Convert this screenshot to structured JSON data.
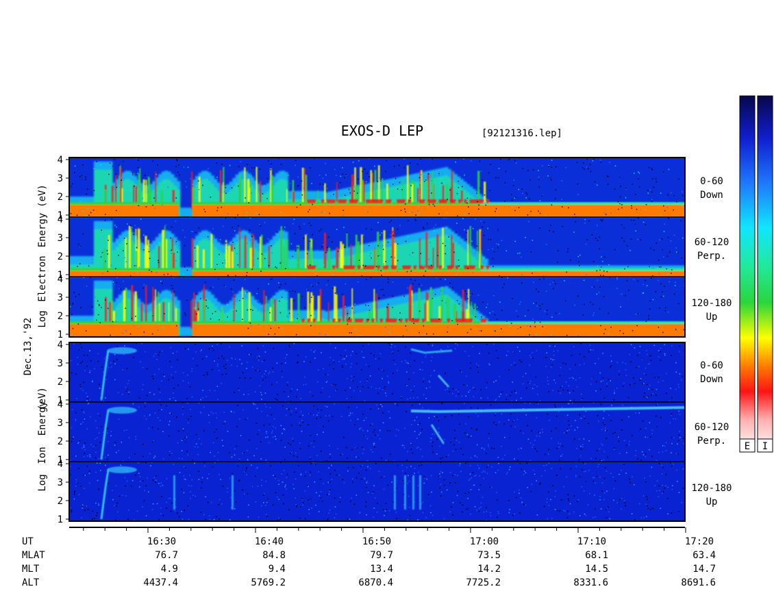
{
  "title": "EXOS-D LEP",
  "file": "[92121316.lep]",
  "date": "Dec.13,'92",
  "colorbar_labels": [
    "E",
    "I"
  ],
  "electron_label": [
    "Electron",
    "Energy",
    "(eV)"
  ],
  "ion_label": [
    "Ion",
    "Energy",
    "(eV)"
  ],
  "log_label": "Log",
  "ytick_labels": [
    "1",
    "2",
    "3",
    "4"
  ],
  "panels": [
    {
      "species": "electron",
      "range": "0-60",
      "direction": "Down"
    },
    {
      "species": "electron",
      "range": "60-120",
      "direction": "Perp."
    },
    {
      "species": "electron",
      "range": "120-180",
      "direction": "Up"
    },
    {
      "species": "ion",
      "range": "0-60",
      "direction": "Down"
    },
    {
      "species": "ion",
      "range": "60-120",
      "direction": "Perp."
    },
    {
      "species": "ion",
      "range": "120-180",
      "direction": "Up"
    }
  ],
  "footer": {
    "row_labels": [
      "UT",
      "MLAT",
      "MLT",
      "ALT"
    ],
    "columns": [
      {
        "ut": "16:30",
        "mlat": "76.7",
        "mlt": "4.9",
        "alt": "4437.4"
      },
      {
        "ut": "16:40",
        "mlat": "84.8",
        "mlt": "9.4",
        "alt": "5769.2"
      },
      {
        "ut": "16:50",
        "mlat": "79.7",
        "mlt": "13.4",
        "alt": "6870.4"
      },
      {
        "ut": "17:00",
        "mlat": "73.5",
        "mlt": "14.2",
        "alt": "7725.2"
      },
      {
        "ut": "17:10",
        "mlat": "68.1",
        "mlt": "14.5",
        "alt": "8331.6"
      },
      {
        "ut": "17:20",
        "mlat": "63.4",
        "mlt": "14.7",
        "alt": "8691.6"
      }
    ]
  },
  "colors": {
    "electron_background": "#0a2fd8",
    "ion_background": "#0a23d2",
    "colorbar": [
      "#07074a",
      "#0f1fd0",
      "#1e7cff",
      "#10e6ff",
      "#22e89a",
      "#2ad63c",
      "#ffff00",
      "#ff7a00",
      "#ff1414",
      "#ffffff"
    ]
  },
  "chart_data": {
    "type": "heatmap",
    "title": "EXOS-D LEP",
    "xlabel": "UT",
    "ylabel": "Log Energy (eV)",
    "ylim": [
      1,
      4
    ],
    "x_ticks": [
      "16:30",
      "16:40",
      "16:50",
      "17:00",
      "17:10",
      "17:20"
    ],
    "series": [
      {
        "name": "0-60 Down",
        "species": "Electron"
      },
      {
        "name": "60-120 Perp.",
        "species": "Electron"
      },
      {
        "name": "120-180 Up",
        "species": "Electron"
      },
      {
        "name": "0-60 Down",
        "species": "Ion"
      },
      {
        "name": "60-120 Perp.",
        "species": "Ion"
      },
      {
        "name": "120-180 Up",
        "species": "Ion"
      }
    ]
  }
}
